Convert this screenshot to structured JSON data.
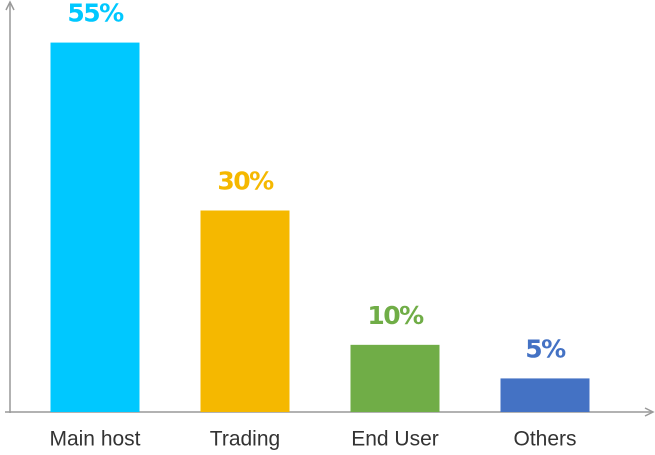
{
  "chart_data": {
    "type": "bar",
    "categories": [
      "Main host",
      "Trading",
      "End User",
      "Others"
    ],
    "values": [
      55,
      30,
      10,
      5
    ],
    "value_labels": [
      "55%",
      "30%",
      "10%",
      "5%"
    ],
    "colors": [
      "#00c8ff",
      "#f5b800",
      "#70ad47",
      "#4472c4"
    ],
    "ylim": [
      0,
      60
    ]
  }
}
